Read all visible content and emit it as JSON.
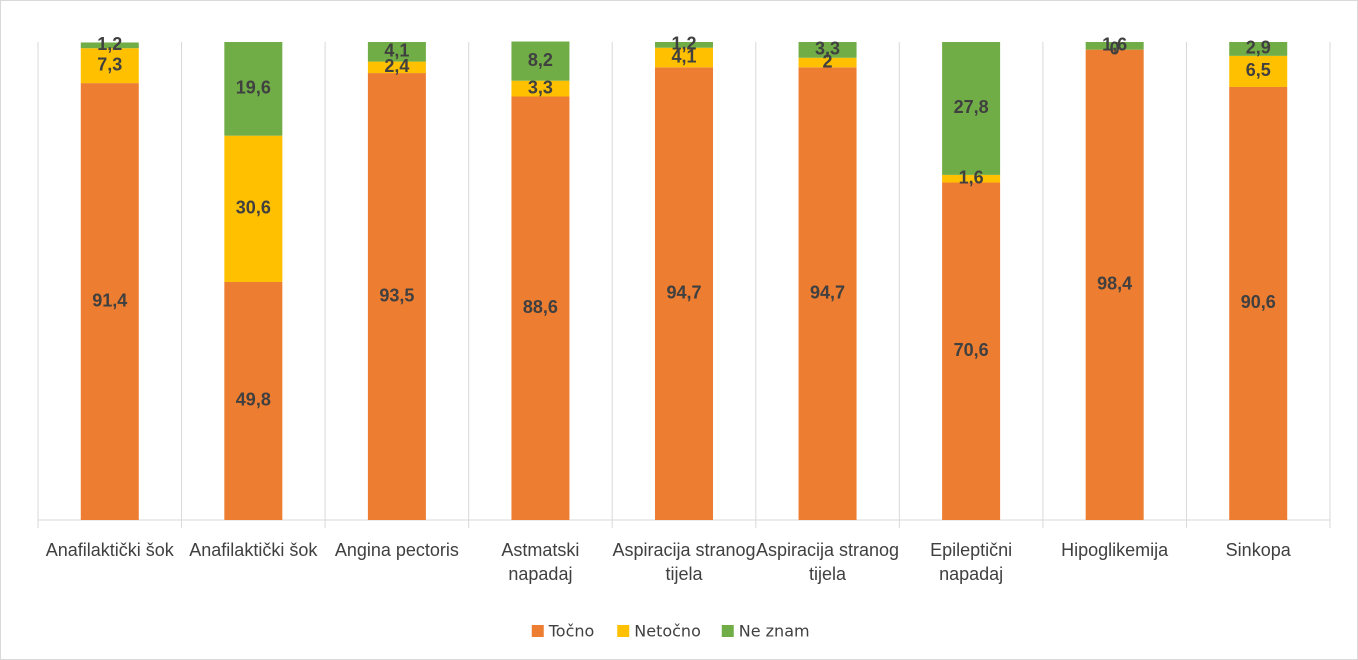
{
  "chart_data": {
    "type": "stacked_bar",
    "categories": [
      "Anafilaktički šok",
      "Anafilaktički šok",
      "Angina pectoris",
      "Astmatski napadaj",
      "Aspiracija stranog tijela",
      "Aspiracija stranog tijela",
      "Epileptični napadaj",
      "Hipoglikemija",
      "Sinkopa"
    ],
    "series": [
      {
        "name": "Točno",
        "color": "#ed7d31",
        "values": [
          91.4,
          49.8,
          93.5,
          88.6,
          94.7,
          94.7,
          70.6,
          98.4,
          90.6
        ],
        "value_labels": [
          "91,4",
          "49,8",
          "93,5",
          "88,6",
          "94,7",
          "94,7",
          "70,6",
          "98,4",
          "90,6"
        ]
      },
      {
        "name": "Netočno",
        "color": "#ffc000",
        "values": [
          7.3,
          30.6,
          2.4,
          3.3,
          4.1,
          2,
          1.6,
          0,
          6.5
        ],
        "value_labels": [
          "7,3",
          "30,6",
          "2,4",
          "3,3",
          "4,1",
          "2",
          "1,6",
          "0",
          "6,5"
        ]
      },
      {
        "name": "Ne znam",
        "color": "#70ad47",
        "values": [
          1.2,
          19.6,
          4.1,
          8.2,
          1.2,
          3.3,
          27.8,
          1.6,
          2.9
        ],
        "value_labels": [
          "1,2",
          "19,6",
          "4,1",
          "8,2",
          "1,2",
          "3,3",
          "27,8",
          "1,6",
          "2,9"
        ]
      }
    ],
    "ylim": [
      0,
      100
    ],
    "legend": "bottom"
  }
}
